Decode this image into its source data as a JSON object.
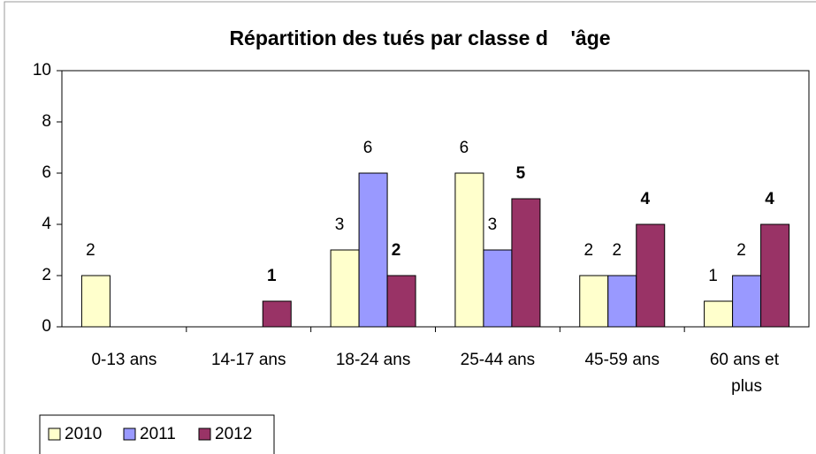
{
  "chart_data": {
    "type": "bar",
    "title": "Répartition des tués par classe d    'âge",
    "categories": [
      "0-13 ans",
      "14-17 ans",
      "18-24 ans",
      "25-44 ans",
      "45-59 ans",
      "60 ans et plus"
    ],
    "series": [
      {
        "name": "2010",
        "color": "#ffffcc",
        "values": [
          2,
          null,
          3,
          6,
          2,
          1
        ]
      },
      {
        "name": "2011",
        "color": "#9999ff",
        "values": [
          null,
          null,
          6,
          3,
          2,
          2
        ]
      },
      {
        "name": "2012",
        "color": "#993366",
        "values": [
          null,
          1,
          2,
          5,
          4,
          4
        ]
      }
    ],
    "ylim": [
      0,
      10
    ],
    "yticks": [
      0,
      2,
      4,
      6,
      8,
      10
    ],
    "grid": false,
    "legend": "bottom-left"
  }
}
